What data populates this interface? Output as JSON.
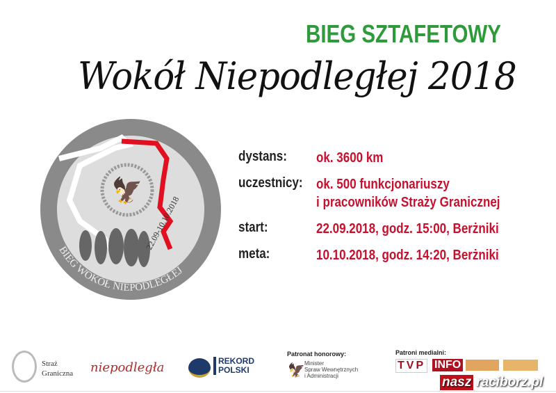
{
  "header": {
    "title": "BIEG SZTAFETOWY",
    "subtitle": "Wokół Niepodległej  2018"
  },
  "emblem": {
    "ring_text": "BIEG WOKÓŁ NIEPODLEGŁEJ",
    "dates": "22.09-10.10.2018"
  },
  "details": [
    {
      "label": "dystans:",
      "value": [
        "ok. 3600  km"
      ]
    },
    {
      "label": "uczestnicy:",
      "value": [
        "ok. 500 funkcjonariuszy",
        "i pracowników Straży Granicznej"
      ]
    },
    {
      "label": "start:",
      "value": [
        "22.09.2018, godz. 15:00, Berżniki"
      ]
    },
    {
      "label": "meta:",
      "value": [
        "10.10.2018, godz. 14:20, Berżniki"
      ]
    }
  ],
  "footer": {
    "straz": [
      "Straż",
      "Graniczna"
    ],
    "niepodlegla": "niepodległa",
    "rekord": [
      "REKORD",
      "POLSKI"
    ],
    "patronat_label": "Patronat honorowy:",
    "minister": [
      "Minister",
      "Spraw Wewnętrznych",
      "i Administracji"
    ],
    "media_label": "Patroni medialni:",
    "tvp": "TVP",
    "info": "INFO",
    "watermark": {
      "a": "nasz",
      "b": "raciborz",
      ".pl": ".pl"
    }
  },
  "colors": {
    "green": "#2f9a3b",
    "red": "#c8102e",
    "gray": "#8a8a8a"
  }
}
